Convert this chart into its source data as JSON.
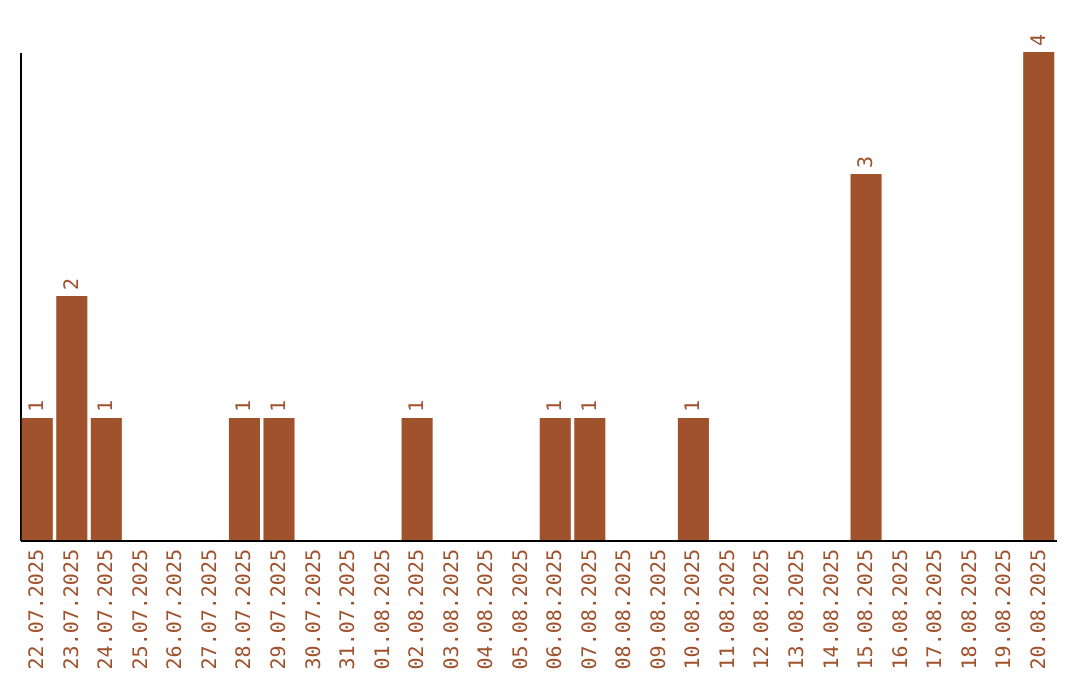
{
  "chart_data": {
    "type": "bar",
    "categories": [
      "22.07.2025",
      "23.07.2025",
      "24.07.2025",
      "25.07.2025",
      "26.07.2025",
      "27.07.2025",
      "28.07.2025",
      "29.07.2025",
      "30.07.2025",
      "31.07.2025",
      "01.08.2025",
      "02.08.2025",
      "03.08.2025",
      "04.08.2025",
      "05.08.2025",
      "06.08.2025",
      "07.08.2025",
      "08.08.2025",
      "09.08.2025",
      "10.08.2025",
      "11.08.2025",
      "12.08.2025",
      "13.08.2025",
      "14.08.2025",
      "15.08.2025",
      "16.08.2025",
      "17.08.2025",
      "18.08.2025",
      "19.08.2025",
      "20.08.2025"
    ],
    "values": [
      1,
      2,
      1,
      0,
      0,
      0,
      1,
      1,
      0,
      0,
      0,
      1,
      0,
      0,
      0,
      1,
      1,
      0,
      0,
      1,
      0,
      0,
      0,
      0,
      3,
      0,
      0,
      0,
      0,
      4
    ],
    "value_labels": [
      "1",
      "2",
      "1",
      null,
      null,
      null,
      "1",
      "1",
      null,
      null,
      null,
      "1",
      null,
      null,
      null,
      "1",
      "1",
      null,
      null,
      "1",
      null,
      null,
      null,
      null,
      "3",
      null,
      null,
      null,
      null,
      "4"
    ],
    "color": "#a0522d",
    "grid": false,
    "tick_labels": "x"
  }
}
